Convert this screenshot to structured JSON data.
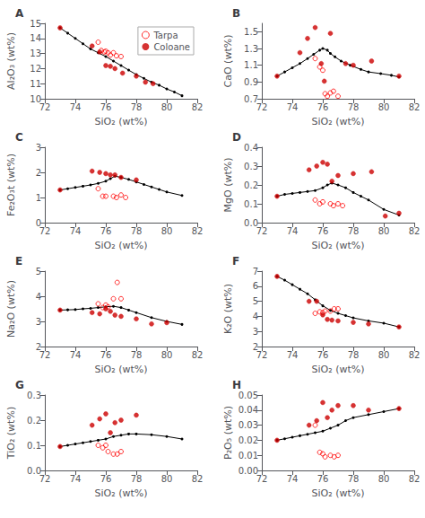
{
  "chart_data": [
    {
      "type": "scatter",
      "title": "A",
      "xlabel": "SiO₂ (wt%)",
      "ylabel": "Al₂O₃ (wt%)",
      "xlim": [
        72,
        82
      ],
      "xticks": [
        72,
        74,
        76,
        78,
        80,
        82
      ],
      "ylim": [
        10,
        15
      ],
      "yticks": [
        10,
        11,
        12,
        13,
        14,
        15
      ],
      "grid": false,
      "legend": "upper right",
      "series": [
        {
          "type": "line",
          "color": "#000000",
          "marker": "circle",
          "x": [
            73.0,
            73.5,
            74.0,
            74.5,
            75.0,
            75.5,
            76.0,
            76.5,
            77.0,
            77.5,
            78.0,
            78.5,
            79.0,
            79.5,
            80.0,
            80.5,
            81.0
          ],
          "values": [
            14.7,
            14.35,
            14.0,
            13.65,
            13.3,
            13.05,
            12.8,
            12.5,
            12.2,
            11.9,
            11.6,
            11.35,
            11.1,
            10.9,
            10.65,
            10.45,
            10.2
          ]
        },
        {
          "name": "Tarpa",
          "type": "scatter",
          "color": "#FF0000",
          "marker": "open circle",
          "x": [
            75.5,
            75.7,
            75.9,
            76.0,
            76.15,
            76.3,
            76.5,
            76.7,
            77.0
          ],
          "values": [
            13.75,
            13.2,
            13.1,
            13.15,
            13.05,
            12.9,
            13.05,
            12.85,
            12.8
          ]
        },
        {
          "name": "Coloane",
          "type": "scatter",
          "color": "#CC0000",
          "marker": "circle",
          "x": [
            73.0,
            75.1,
            75.6,
            76.0,
            76.3,
            76.6,
            77.1,
            78.0,
            78.6,
            79.1
          ],
          "values": [
            14.7,
            13.5,
            13.1,
            12.2,
            12.15,
            12.0,
            11.7,
            11.5,
            11.1,
            11.0
          ]
        }
      ]
    },
    {
      "type": "scatter",
      "title": "B",
      "xlabel": "SiO₂ (wt%)",
      "ylabel": "CaO (wt%)",
      "xlim": [
        72,
        82
      ],
      "xticks": [
        72,
        74,
        76,
        78,
        80,
        82
      ],
      "ylim": [
        0.7,
        1.6
      ],
      "yticks": [
        0.7,
        0.9,
        1.1,
        1.3,
        1.5
      ],
      "grid": false,
      "series": [
        {
          "type": "line",
          "color": "#000000",
          "marker": "circle",
          "x": [
            73.0,
            73.5,
            74.0,
            74.5,
            75.0,
            75.4,
            75.8,
            76.0,
            76.3,
            76.5,
            76.8,
            77.2,
            77.8,
            78.5,
            79.0,
            79.8,
            80.5,
            81.0
          ],
          "values": [
            0.97,
            1.02,
            1.07,
            1.12,
            1.18,
            1.23,
            1.28,
            1.3,
            1.28,
            1.24,
            1.2,
            1.15,
            1.1,
            1.05,
            1.02,
            1.0,
            0.98,
            0.96
          ]
        },
        {
          "name": "Tarpa",
          "type": "scatter",
          "color": "#FF0000",
          "marker": "open circle",
          "x": [
            75.5,
            75.8,
            76.0,
            76.15,
            76.3,
            76.5,
            76.7,
            77.0
          ],
          "values": [
            1.18,
            1.08,
            1.04,
            0.76,
            0.73,
            0.77,
            0.79,
            0.73
          ]
        },
        {
          "name": "Coloane",
          "type": "scatter",
          "color": "#CC0000",
          "marker": "circle",
          "x": [
            73.0,
            74.5,
            75.0,
            75.5,
            75.9,
            76.1,
            76.5,
            77.5,
            78.0,
            79.2,
            81.0
          ],
          "values": [
            0.97,
            1.25,
            1.42,
            1.55,
            1.12,
            0.91,
            1.48,
            1.12,
            1.1,
            1.15,
            0.97
          ]
        }
      ]
    },
    {
      "type": "scatter",
      "title": "C",
      "xlabel": "SiO₂ (wt%)",
      "ylabel": "Fe₂O₃t (wt%)",
      "xlim": [
        72,
        82
      ],
      "xticks": [
        72,
        74,
        76,
        78,
        80,
        82
      ],
      "ylim": [
        0,
        3
      ],
      "yticks": [
        0,
        1,
        2,
        3
      ],
      "grid": false,
      "series": [
        {
          "type": "line",
          "color": "#000000",
          "marker": "circle",
          "x": [
            73.0,
            73.5,
            74.0,
            74.5,
            75.0,
            75.5,
            76.0,
            76.3,
            76.6,
            77.0,
            77.5,
            78.0,
            78.5,
            79.0,
            79.5,
            80.0,
            81.0
          ],
          "values": [
            1.3,
            1.35,
            1.4,
            1.45,
            1.5,
            1.56,
            1.65,
            1.75,
            1.85,
            1.8,
            1.72,
            1.62,
            1.52,
            1.42,
            1.32,
            1.22,
            1.08
          ]
        },
        {
          "name": "Tarpa",
          "type": "scatter",
          "color": "#FF0000",
          "marker": "open circle",
          "x": [
            75.5,
            75.8,
            76.0,
            76.5,
            76.7,
            77.0,
            77.3
          ],
          "values": [
            1.35,
            1.05,
            1.05,
            1.05,
            1.0,
            1.1,
            1.0
          ]
        },
        {
          "name": "Coloane",
          "type": "scatter",
          "color": "#CC0000",
          "marker": "circle",
          "x": [
            73.0,
            75.1,
            75.6,
            76.0,
            76.3,
            76.6,
            77.0,
            78.0
          ],
          "values": [
            1.3,
            2.05,
            2.0,
            1.95,
            1.9,
            1.9,
            1.8,
            1.7
          ]
        }
      ]
    },
    {
      "type": "scatter",
      "title": "D",
      "xlabel": "SiO₂ (wt%)",
      "ylabel": "MgO (wt%)",
      "xlim": [
        72,
        82
      ],
      "xticks": [
        72,
        74,
        76,
        78,
        80,
        82
      ],
      "ylim": [
        0.0,
        0.4
      ],
      "yticks": [
        {
          "value": 0.0,
          "label": "0.0"
        },
        0.1,
        0.2,
        0.3,
        0.4
      ],
      "grid": false,
      "series": [
        {
          "type": "line",
          "color": "#000000",
          "marker": "circle",
          "x": [
            73.0,
            73.5,
            74.0,
            74.5,
            75.0,
            75.5,
            76.0,
            76.3,
            76.6,
            77.0,
            77.5,
            78.0,
            78.5,
            79.0,
            80.0,
            81.0
          ],
          "values": [
            0.14,
            0.15,
            0.155,
            0.16,
            0.165,
            0.17,
            0.185,
            0.2,
            0.21,
            0.2,
            0.185,
            0.16,
            0.14,
            0.12,
            0.07,
            0.04
          ]
        },
        {
          "name": "Tarpa",
          "type": "scatter",
          "color": "#FF0000",
          "marker": "open circle",
          "x": [
            75.5,
            75.8,
            76.0,
            76.5,
            76.7,
            77.0,
            77.3
          ],
          "values": [
            0.12,
            0.1,
            0.11,
            0.1,
            0.09,
            0.1,
            0.09
          ]
        },
        {
          "name": "Coloane",
          "type": "scatter",
          "color": "#CC0000",
          "marker": "circle",
          "x": [
            73.0,
            75.1,
            75.6,
            76.0,
            76.3,
            76.6,
            77.0,
            78.0,
            79.2,
            80.1,
            81.0
          ],
          "values": [
            0.14,
            0.28,
            0.3,
            0.32,
            0.31,
            0.22,
            0.25,
            0.26,
            0.27,
            0.035,
            0.05
          ]
        }
      ]
    },
    {
      "type": "scatter",
      "title": "E",
      "xlabel": "SiO₂ (wt%)",
      "ylabel": "Na₂O (wt%)",
      "xlim": [
        72,
        82
      ],
      "xticks": [
        72,
        74,
        76,
        78,
        80,
        82
      ],
      "ylim": [
        2,
        5
      ],
      "yticks": [
        2,
        3,
        4,
        5
      ],
      "grid": false,
      "series": [
        {
          "type": "line",
          "color": "#000000",
          "marker": "circle",
          "x": [
            73.0,
            73.5,
            74.0,
            74.5,
            75.0,
            75.5,
            76.0,
            76.5,
            77.0,
            77.5,
            78.0,
            79.0,
            80.0,
            81.0
          ],
          "values": [
            3.45,
            3.46,
            3.47,
            3.5,
            3.52,
            3.55,
            3.58,
            3.6,
            3.55,
            3.45,
            3.35,
            3.15,
            3.0,
            2.88
          ]
        },
        {
          "name": "Tarpa",
          "type": "scatter",
          "color": "#FF0000",
          "marker": "open circle",
          "x": [
            75.5,
            75.8,
            76.0,
            76.15,
            76.5,
            76.75,
            77.0
          ],
          "values": [
            3.7,
            3.55,
            3.65,
            3.58,
            3.9,
            4.55,
            3.9
          ]
        },
        {
          "name": "Coloane",
          "type": "scatter",
          "color": "#CC0000",
          "marker": "circle",
          "x": [
            73.0,
            75.1,
            75.6,
            76.0,
            76.3,
            76.6,
            77.0,
            78.0,
            79.0,
            80.0
          ],
          "values": [
            3.45,
            3.35,
            3.3,
            3.5,
            3.4,
            3.25,
            3.2,
            3.1,
            2.9,
            2.95
          ]
        }
      ]
    },
    {
      "type": "scatter",
      "title": "F",
      "xlabel": "SiO₂ (wt%)",
      "ylabel": "K₂O (wt%)",
      "xlim": [
        72,
        82
      ],
      "xticks": [
        72,
        74,
        76,
        78,
        80,
        82
      ],
      "ylim": [
        2,
        7
      ],
      "yticks": [
        2,
        3,
        4,
        5,
        6,
        7
      ],
      "grid": false,
      "series": [
        {
          "type": "line",
          "color": "#000000",
          "marker": "circle",
          "x": [
            73.0,
            73.5,
            74.0,
            74.5,
            75.0,
            75.5,
            76.0,
            76.5,
            77.0,
            77.5,
            78.0,
            79.0,
            80.0,
            81.0
          ],
          "values": [
            6.65,
            6.4,
            6.1,
            5.8,
            5.5,
            5.1,
            4.7,
            4.4,
            4.2,
            4.05,
            3.9,
            3.7,
            3.55,
            3.3
          ]
        },
        {
          "name": "Tarpa",
          "type": "scatter",
          "color": "#FF0000",
          "marker": "open circle",
          "x": [
            75.5,
            75.8,
            76.0,
            76.15,
            76.5,
            76.75,
            77.0
          ],
          "values": [
            4.2,
            4.3,
            4.25,
            4.35,
            4.35,
            4.5,
            4.5
          ]
        },
        {
          "name": "Coloane",
          "type": "scatter",
          "color": "#CC0000",
          "marker": "circle",
          "x": [
            73.0,
            75.1,
            75.6,
            76.0,
            76.3,
            76.6,
            77.0,
            78.0,
            79.0,
            81.0
          ],
          "values": [
            6.65,
            5.0,
            5.0,
            4.1,
            3.8,
            3.75,
            3.7,
            3.6,
            3.5,
            3.3
          ]
        }
      ]
    },
    {
      "type": "scatter",
      "title": "G",
      "xlabel": "SiO₂ (wt%)",
      "ylabel": "TiO₂ (wt%)",
      "xlim": [
        72,
        82
      ],
      "xticks": [
        72,
        74,
        76,
        78,
        80,
        82
      ],
      "ylim": [
        0.0,
        0.3
      ],
      "yticks": [
        {
          "value": 0.0,
          "label": "0.0"
        },
        0.1,
        0.2,
        0.3
      ],
      "grid": false,
      "series": [
        {
          "type": "line",
          "color": "#000000",
          "marker": "circle",
          "x": [
            73.0,
            73.5,
            74.0,
            74.5,
            75.0,
            75.5,
            76.0,
            76.5,
            77.0,
            77.5,
            78.0,
            79.0,
            80.0,
            81.0
          ],
          "values": [
            0.095,
            0.1,
            0.105,
            0.11,
            0.115,
            0.12,
            0.125,
            0.135,
            0.14,
            0.145,
            0.145,
            0.142,
            0.135,
            0.125
          ]
        },
        {
          "name": "Tarpa",
          "type": "scatter",
          "color": "#FF0000",
          "marker": "open circle",
          "x": [
            75.5,
            75.8,
            76.0,
            76.15,
            76.5,
            76.75,
            77.0
          ],
          "values": [
            0.1,
            0.09,
            0.1,
            0.075,
            0.065,
            0.065,
            0.075
          ]
        },
        {
          "name": "Coloane",
          "type": "scatter",
          "color": "#CC0000",
          "marker": "circle",
          "x": [
            73.0,
            75.1,
            75.6,
            76.0,
            76.3,
            76.6,
            77.0,
            78.0
          ],
          "values": [
            0.095,
            0.18,
            0.205,
            0.225,
            0.15,
            0.19,
            0.2,
            0.22
          ]
        }
      ]
    },
    {
      "type": "scatter",
      "title": "H",
      "xlabel": "SiO₂ (wt%)",
      "ylabel": "P₂O₅ (wt%)",
      "xlim": [
        72,
        82
      ],
      "xticks": [
        72,
        74,
        76,
        78,
        80,
        82
      ],
      "ylim": [
        0.0,
        0.05
      ],
      "yticks": [
        {
          "value": 0.0,
          "label": "0.00"
        },
        0.01,
        0.02,
        0.03,
        0.04,
        0.05
      ],
      "grid": false,
      "series": [
        {
          "type": "line",
          "color": "#000000",
          "marker": "circle",
          "x": [
            73.0,
            73.5,
            74.0,
            74.5,
            75.0,
            75.5,
            76.0,
            76.5,
            77.0,
            77.5,
            78.0,
            79.0,
            80.0,
            81.0
          ],
          "values": [
            0.02,
            0.021,
            0.022,
            0.023,
            0.024,
            0.025,
            0.026,
            0.028,
            0.03,
            0.033,
            0.035,
            0.037,
            0.039,
            0.041
          ]
        },
        {
          "name": "Tarpa",
          "type": "scatter",
          "color": "#FF0000",
          "marker": "open circle",
          "x": [
            75.5,
            75.8,
            76.0,
            76.15,
            76.5,
            76.75,
            77.0
          ],
          "values": [
            0.03,
            0.012,
            0.011,
            0.009,
            0.01,
            0.009,
            0.01
          ]
        },
        {
          "name": "Coloane",
          "type": "scatter",
          "color": "#CC0000",
          "marker": "circle",
          "x": [
            73.0,
            75.1,
            75.6,
            76.0,
            76.3,
            76.6,
            77.0,
            78.0,
            79.0,
            81.0
          ],
          "values": [
            0.02,
            0.03,
            0.033,
            0.045,
            0.035,
            0.04,
            0.043,
            0.043,
            0.04,
            0.041
          ]
        }
      ]
    }
  ]
}
